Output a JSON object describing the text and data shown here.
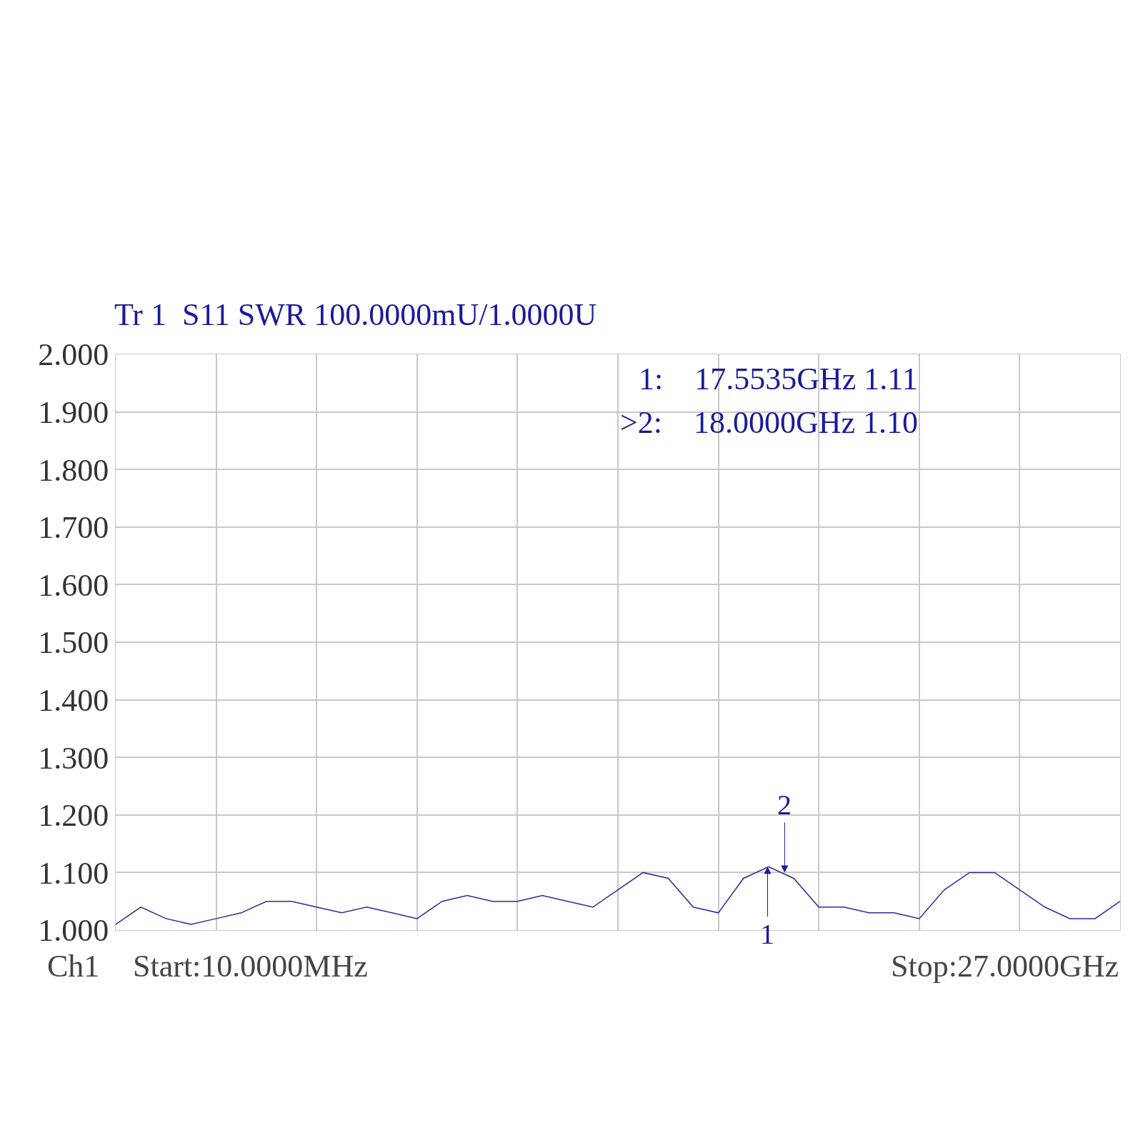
{
  "chart_data": {
    "type": "line",
    "title": "Tr 1  S11 SWR 100.0000mU/1.0000U",
    "categories": [
      null,
      null,
      null,
      null,
      null,
      null,
      null,
      null,
      null,
      null,
      null,
      null,
      null,
      null,
      null,
      null,
      null,
      null,
      null,
      null,
      null,
      null,
      null,
      null,
      null,
      null,
      null,
      null,
      null,
      null,
      null,
      null,
      null,
      null,
      null,
      null,
      null,
      null,
      null,
      null,
      null
    ],
    "series": [
      {
        "color": "#2b2b9a",
        "values": [
          1.01,
          1.04,
          1.02,
          1.01,
          1.02,
          1.03,
          1.05,
          1.05,
          1.04,
          1.03,
          1.04,
          1.03,
          1.02,
          1.05,
          1.06,
          1.05,
          1.05,
          1.06,
          1.05,
          1.04,
          1.07,
          1.1,
          1.09,
          1.04,
          1.03,
          1.09,
          1.11,
          1.09,
          1.04,
          1.04,
          1.03,
          1.03,
          1.02,
          1.07,
          1.1,
          1.1,
          1.07,
          1.04,
          1.02,
          1.02,
          1.05
        ]
      }
    ],
    "ylim": [
      1,
      2
    ],
    "yticks": [
      {
        "value": 1,
        "label": "1.000"
      },
      {
        "value": 1.1,
        "label": "1.100"
      },
      {
        "value": 1.2,
        "label": "1.200"
      },
      {
        "value": 1.3,
        "label": "1.300"
      },
      {
        "value": 1.4,
        "label": "1.400"
      },
      {
        "value": 1.5,
        "label": "1.500"
      },
      {
        "value": 1.6,
        "label": "1.600"
      },
      {
        "value": 1.7,
        "label": "1.700"
      },
      {
        "value": 1.8,
        "label": "1.800"
      },
      {
        "value": 1.9,
        "label": "1.900"
      },
      {
        "value": 2,
        "label": "2.000"
      }
    ],
    "tick_labels": "y",
    "grid": true,
    "annotations": [
      "1:    17.5535GHz 1.11",
      ">2:    18.0000GHz 1.10",
      "Ch1",
      "Start:10.0000MHz",
      "Stop:27.0000GHz",
      {
        "text": "1",
        "y": 1.11
      },
      {
        "text": "2",
        "y": 1.1
      }
    ]
  }
}
